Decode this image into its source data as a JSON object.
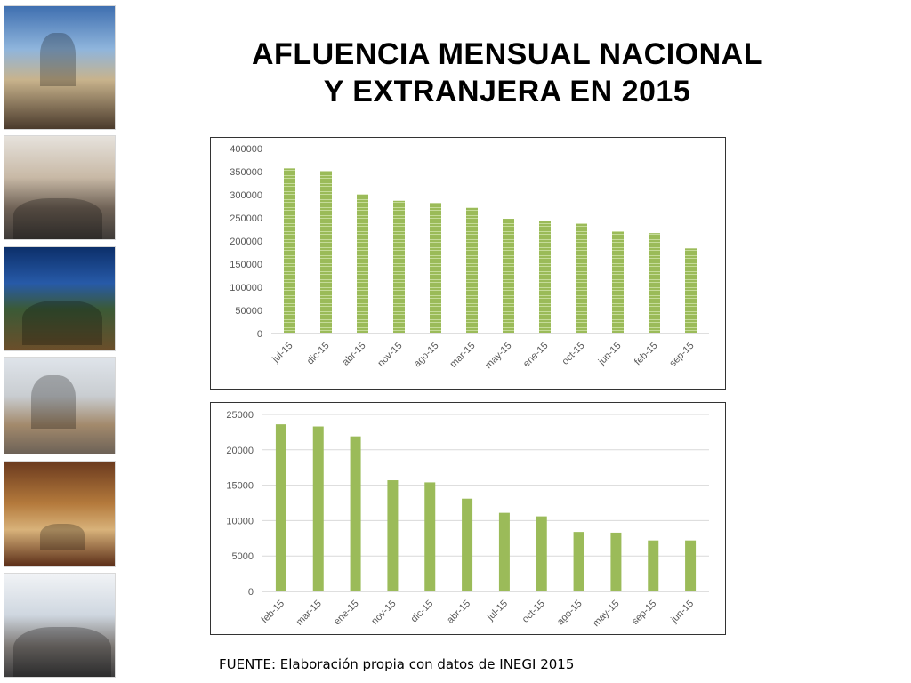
{
  "slide": {
    "title_line1": "AFLUENCIA MENSUAL NACIONAL",
    "title_line2": "Y EXTRANJERA EN 2015",
    "source": "FUENTE: Elaboración propia con datos de INEGI 2015"
  },
  "colors": {
    "bar": "#9bbb59",
    "bar_stripe": "#c6dc9a",
    "grid": "#d9d9d9",
    "axis_text": "#595959"
  },
  "chart_data": [
    {
      "type": "bar",
      "categories": [
        "jul-15",
        "dic-15",
        "abr-15",
        "nov-15",
        "ago-15",
        "mar-15",
        "may-15",
        "ene-15",
        "oct-15",
        "jun-15",
        "feb-15",
        "sep-15"
      ],
      "values": [
        357000,
        351000,
        301000,
        287000,
        282000,
        272000,
        248000,
        244000,
        238000,
        221000,
        217000,
        184000
      ],
      "yticks": [
        0,
        50000,
        100000,
        150000,
        200000,
        250000,
        300000,
        350000,
        400000
      ],
      "ylim": [
        0,
        400000
      ],
      "grid": false,
      "bar_style": "striped"
    },
    {
      "type": "bar",
      "categories": [
        "feb-15",
        "mar-15",
        "ene-15",
        "nov-15",
        "dic-15",
        "abr-15",
        "jul-15",
        "oct-15",
        "ago-15",
        "may-15",
        "sep-15",
        "jun-15"
      ],
      "values": [
        23600,
        23300,
        21900,
        15700,
        15400,
        13100,
        11100,
        10600,
        8400,
        8300,
        7200,
        7200
      ],
      "yticks": [
        0,
        5000,
        10000,
        15000,
        20000,
        25000
      ],
      "ylim": [
        0,
        25000
      ],
      "grid": true,
      "bar_style": "solid"
    }
  ]
}
